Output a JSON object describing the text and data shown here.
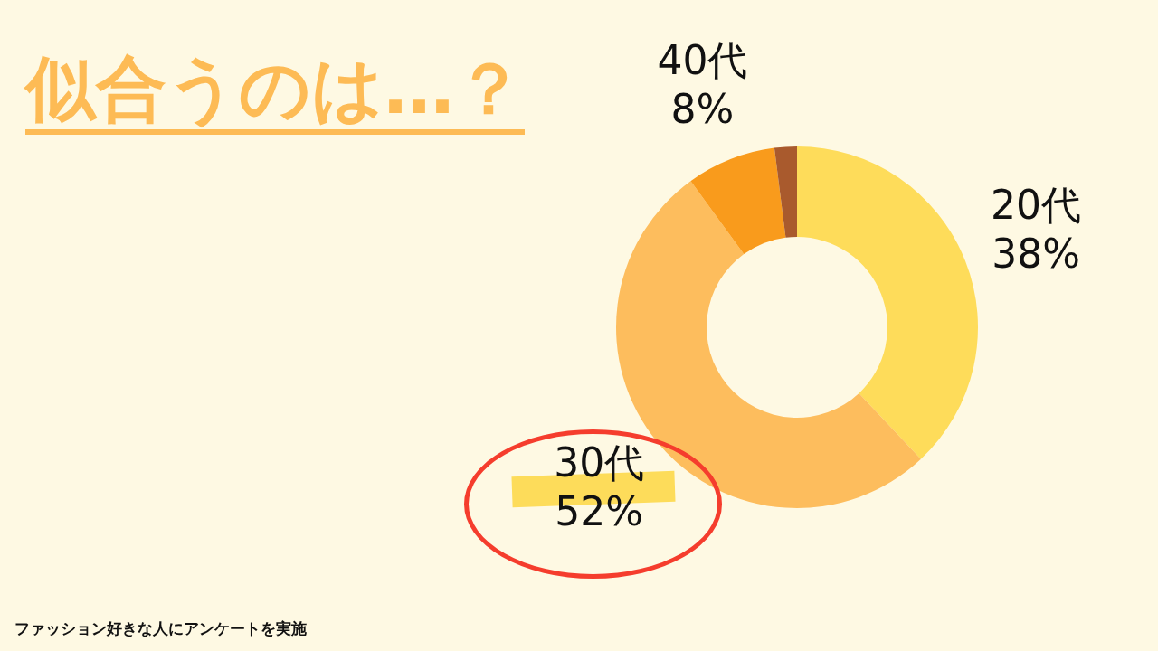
{
  "chart_data": {
    "type": "donut",
    "title": "似合うのは…？",
    "categories": [
      "20代",
      "30代",
      "40代",
      null
    ],
    "values": [
      38,
      52,
      8,
      2
    ],
    "value_labels": [
      "38%",
      "52%",
      "8%",
      null
    ],
    "colors": [
      "#fedc5a",
      "#fdbd5d",
      "#f99b1c",
      "#a95a2d"
    ],
    "legend": false,
    "annotations": [
      "ファッション好きな人にアンケートを実施"
    ]
  }
}
